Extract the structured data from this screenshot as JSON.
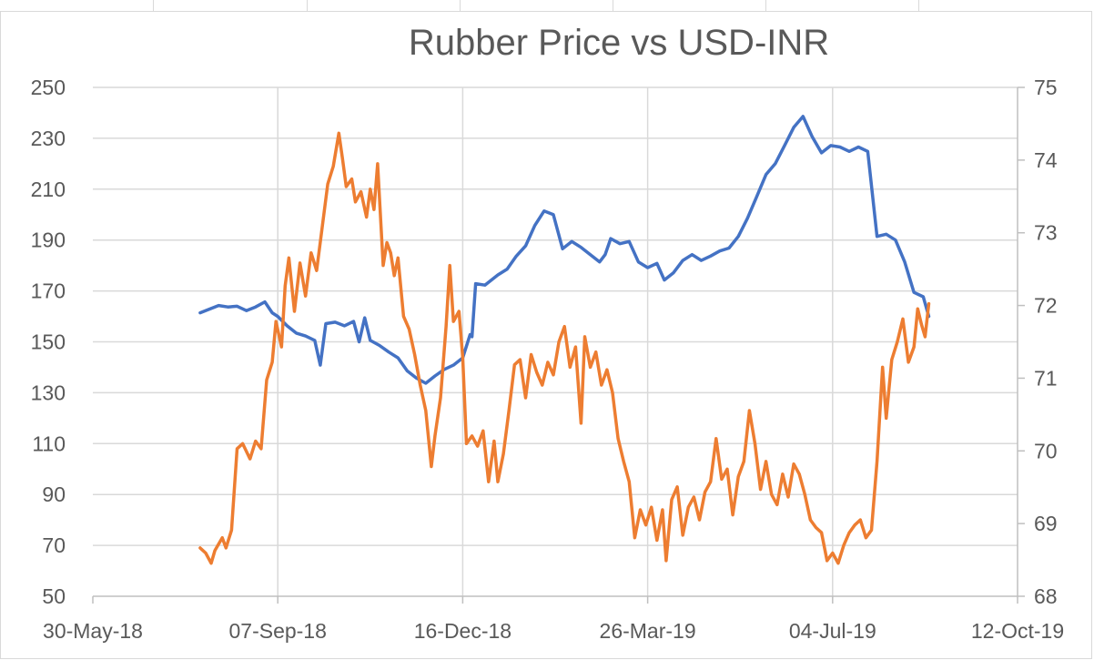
{
  "chart_data": {
    "type": "line",
    "title": "Rubber Price vs USD-INR",
    "xlabel": "",
    "ylabel": "",
    "x_ticks": [
      "30-May-18",
      "07-Sep-18",
      "16-Dec-18",
      "26-Mar-19",
      "04-Jul-19",
      "12-Oct-19"
    ],
    "x_range": [
      "2018-05-30",
      "2019-10-12"
    ],
    "y_left": {
      "range": [
        50,
        250
      ],
      "ticks": [
        "250",
        "230",
        "210",
        "190",
        "170",
        "150",
        "130",
        "110",
        "90",
        "70",
        "50"
      ]
    },
    "y_right": {
      "range": [
        68,
        75
      ],
      "ticks": [
        "75",
        "74",
        "73",
        "72",
        "71",
        "70",
        "69",
        "68"
      ]
    },
    "grid": true,
    "legend": "none",
    "series": [
      {
        "axis": "right",
        "color": "#4472c4",
        "points": [
          [
            "2018-07-27",
            71.9
          ],
          [
            "2018-08-01",
            71.95
          ],
          [
            "2018-08-06",
            72.0
          ],
          [
            "2018-08-11",
            71.98
          ],
          [
            "2018-08-16",
            71.99
          ],
          [
            "2018-08-21",
            71.93
          ],
          [
            "2018-08-26",
            71.98
          ],
          [
            "2018-08-31",
            72.05
          ],
          [
            "2018-09-04",
            71.9
          ],
          [
            "2018-09-07",
            71.85
          ],
          [
            "2018-09-12",
            71.72
          ],
          [
            "2018-09-17",
            71.62
          ],
          [
            "2018-09-22",
            71.58
          ],
          [
            "2018-09-27",
            71.52
          ],
          [
            "2018-09-30",
            71.18
          ],
          [
            "2018-10-03",
            71.75
          ],
          [
            "2018-10-08",
            71.77
          ],
          [
            "2018-10-13",
            71.72
          ],
          [
            "2018-10-18",
            71.78
          ],
          [
            "2018-10-21",
            71.5
          ],
          [
            "2018-10-24",
            71.83
          ],
          [
            "2018-10-27",
            71.52
          ],
          [
            "2018-11-01",
            71.45
          ],
          [
            "2018-11-06",
            71.36
          ],
          [
            "2018-11-11",
            71.28
          ],
          [
            "2018-11-16",
            71.1
          ],
          [
            "2018-11-21",
            71.0
          ],
          [
            "2018-11-26",
            70.93
          ],
          [
            "2018-12-01",
            71.03
          ],
          [
            "2018-12-06",
            71.12
          ],
          [
            "2018-12-11",
            71.18
          ],
          [
            "2018-12-16",
            71.28
          ],
          [
            "2018-12-19",
            71.52
          ],
          [
            "2018-12-20",
            71.6
          ],
          [
            "2018-12-21",
            71.57
          ],
          [
            "2018-12-23",
            72.3
          ],
          [
            "2018-12-28",
            72.28
          ],
          [
            "2019-01-04",
            72.42
          ],
          [
            "2019-01-09",
            72.5
          ],
          [
            "2019-01-14",
            72.68
          ],
          [
            "2019-01-19",
            72.82
          ],
          [
            "2019-01-24",
            73.1
          ],
          [
            "2019-01-29",
            73.3
          ],
          [
            "2019-02-03",
            73.25
          ],
          [
            "2019-02-08",
            72.78
          ],
          [
            "2019-02-13",
            72.88
          ],
          [
            "2019-02-18",
            72.8
          ],
          [
            "2019-02-23",
            72.7
          ],
          [
            "2019-02-28",
            72.6
          ],
          [
            "2019-03-03",
            72.7
          ],
          [
            "2019-03-06",
            72.92
          ],
          [
            "2019-03-11",
            72.85
          ],
          [
            "2019-03-16",
            72.88
          ],
          [
            "2019-03-21",
            72.6
          ],
          [
            "2019-03-26",
            72.52
          ],
          [
            "2019-03-31",
            72.58
          ],
          [
            "2019-04-04",
            72.35
          ],
          [
            "2019-04-09",
            72.45
          ],
          [
            "2019-04-14",
            72.62
          ],
          [
            "2019-04-19",
            72.7
          ],
          [
            "2019-04-24",
            72.62
          ],
          [
            "2019-04-29",
            72.68
          ],
          [
            "2019-05-04",
            72.75
          ],
          [
            "2019-05-09",
            72.79
          ],
          [
            "2019-05-14",
            72.95
          ],
          [
            "2019-05-19",
            73.2
          ],
          [
            "2019-05-24",
            73.5
          ],
          [
            "2019-05-29",
            73.8
          ],
          [
            "2019-06-03",
            73.95
          ],
          [
            "2019-06-08",
            74.2
          ],
          [
            "2019-06-13",
            74.45
          ],
          [
            "2019-06-18",
            74.6
          ],
          [
            "2019-06-23",
            74.32
          ],
          [
            "2019-06-28",
            74.1
          ],
          [
            "2019-07-03",
            74.2
          ],
          [
            "2019-07-08",
            74.18
          ],
          [
            "2019-07-13",
            74.12
          ],
          [
            "2019-07-18",
            74.18
          ],
          [
            "2019-07-23",
            74.12
          ],
          [
            "2019-07-28",
            72.95
          ],
          [
            "2019-08-02",
            72.98
          ],
          [
            "2019-08-07",
            72.9
          ],
          [
            "2019-08-12",
            72.6
          ],
          [
            "2019-08-17",
            72.18
          ],
          [
            "2019-08-22",
            72.12
          ],
          [
            "2019-08-25",
            71.85
          ]
        ]
      },
      {
        "axis": "left",
        "color": "#ed7d31",
        "points": [
          [
            "2018-07-27",
            69
          ],
          [
            "2018-07-30",
            67
          ],
          [
            "2018-08-02",
            63
          ],
          [
            "2018-08-04",
            68
          ],
          [
            "2018-08-08",
            73
          ],
          [
            "2018-08-10",
            69
          ],
          [
            "2018-08-13",
            76
          ],
          [
            "2018-08-16",
            108
          ],
          [
            "2018-08-19",
            110
          ],
          [
            "2018-08-23",
            104
          ],
          [
            "2018-08-26",
            111
          ],
          [
            "2018-08-29",
            108
          ],
          [
            "2018-09-01",
            135
          ],
          [
            "2018-09-04",
            142
          ],
          [
            "2018-09-06",
            158
          ],
          [
            "2018-09-09",
            148
          ],
          [
            "2018-09-11",
            172
          ],
          [
            "2018-09-13",
            183
          ],
          [
            "2018-09-16",
            162
          ],
          [
            "2018-09-19",
            181
          ],
          [
            "2018-09-22",
            168
          ],
          [
            "2018-09-25",
            185
          ],
          [
            "2018-09-28",
            178
          ],
          [
            "2018-10-01",
            195
          ],
          [
            "2018-10-04",
            212
          ],
          [
            "2018-10-07",
            219
          ],
          [
            "2018-10-10",
            232
          ],
          [
            "2018-10-12",
            222
          ],
          [
            "2018-10-14",
            211
          ],
          [
            "2018-10-17",
            214
          ],
          [
            "2018-10-19",
            205
          ],
          [
            "2018-10-22",
            209
          ],
          [
            "2018-10-25",
            199
          ],
          [
            "2018-10-27",
            210
          ],
          [
            "2018-10-29",
            202
          ],
          [
            "2018-10-31",
            220
          ],
          [
            "2018-11-03",
            180
          ],
          [
            "2018-11-05",
            189
          ],
          [
            "2018-11-07",
            185
          ],
          [
            "2018-11-09",
            176
          ],
          [
            "2018-11-11",
            183
          ],
          [
            "2018-11-14",
            160
          ],
          [
            "2018-11-17",
            155
          ],
          [
            "2018-11-20",
            145
          ],
          [
            "2018-11-23",
            133
          ],
          [
            "2018-11-26",
            123
          ],
          [
            "2018-11-29",
            101
          ],
          [
            "2018-12-01",
            113
          ],
          [
            "2018-12-04",
            128
          ],
          [
            "2018-12-07",
            156
          ],
          [
            "2018-12-09",
            180
          ],
          [
            "2018-12-11",
            158
          ],
          [
            "2018-12-14",
            162
          ],
          [
            "2018-12-16",
            144
          ],
          [
            "2018-12-18",
            110
          ],
          [
            "2018-12-21",
            113
          ],
          [
            "2018-12-24",
            109
          ],
          [
            "2018-12-27",
            115
          ],
          [
            "2018-12-30",
            95
          ],
          [
            "2019-01-02",
            111
          ],
          [
            "2019-01-04",
            95
          ],
          [
            "2019-01-07",
            106
          ],
          [
            "2019-01-10",
            123
          ],
          [
            "2019-01-13",
            141
          ],
          [
            "2019-01-16",
            143
          ],
          [
            "2019-01-19",
            128
          ],
          [
            "2019-01-22",
            145
          ],
          [
            "2019-01-25",
            138
          ],
          [
            "2019-01-28",
            133
          ],
          [
            "2019-01-31",
            142
          ],
          [
            "2019-02-03",
            137
          ],
          [
            "2019-02-06",
            150
          ],
          [
            "2019-02-09",
            156
          ],
          [
            "2019-02-12",
            140
          ],
          [
            "2019-02-15",
            148
          ],
          [
            "2019-02-18",
            118
          ],
          [
            "2019-02-20",
            152
          ],
          [
            "2019-02-23",
            140
          ],
          [
            "2019-02-26",
            146
          ],
          [
            "2019-03-01",
            133
          ],
          [
            "2019-03-04",
            139
          ],
          [
            "2019-03-07",
            130
          ],
          [
            "2019-03-10",
            112
          ],
          [
            "2019-03-13",
            103
          ],
          [
            "2019-03-16",
            95
          ],
          [
            "2019-03-19",
            73
          ],
          [
            "2019-03-22",
            84
          ],
          [
            "2019-03-25",
            78
          ],
          [
            "2019-03-28",
            85
          ],
          [
            "2019-03-31",
            72
          ],
          [
            "2019-04-03",
            84
          ],
          [
            "2019-04-05",
            64
          ],
          [
            "2019-04-08",
            88
          ],
          [
            "2019-04-11",
            93
          ],
          [
            "2019-04-14",
            74
          ],
          [
            "2019-04-17",
            85
          ],
          [
            "2019-04-20",
            89
          ],
          [
            "2019-04-23",
            80
          ],
          [
            "2019-04-26",
            91
          ],
          [
            "2019-04-29",
            95
          ],
          [
            "2019-05-02",
            112
          ],
          [
            "2019-05-05",
            96
          ],
          [
            "2019-05-08",
            100
          ],
          [
            "2019-05-11",
            82
          ],
          [
            "2019-05-14",
            97
          ],
          [
            "2019-05-17",
            103
          ],
          [
            "2019-05-20",
            123
          ],
          [
            "2019-05-23",
            110
          ],
          [
            "2019-05-26",
            92
          ],
          [
            "2019-05-29",
            103
          ],
          [
            "2019-06-01",
            90
          ],
          [
            "2019-06-04",
            86
          ],
          [
            "2019-06-07",
            98
          ],
          [
            "2019-06-10",
            89
          ],
          [
            "2019-06-13",
            102
          ],
          [
            "2019-06-16",
            98
          ],
          [
            "2019-06-19",
            90
          ],
          [
            "2019-06-22",
            80
          ],
          [
            "2019-06-25",
            77
          ],
          [
            "2019-06-28",
            75
          ],
          [
            "2019-07-01",
            64
          ],
          [
            "2019-07-04",
            67
          ],
          [
            "2019-07-07",
            63
          ],
          [
            "2019-07-10",
            70
          ],
          [
            "2019-07-13",
            75
          ],
          [
            "2019-07-16",
            78
          ],
          [
            "2019-07-19",
            80
          ],
          [
            "2019-07-22",
            73
          ],
          [
            "2019-07-25",
            76
          ],
          [
            "2019-07-28",
            103
          ],
          [
            "2019-07-31",
            140
          ],
          [
            "2019-08-02",
            120
          ],
          [
            "2019-08-05",
            143
          ],
          [
            "2019-08-08",
            150
          ],
          [
            "2019-08-11",
            159
          ],
          [
            "2019-08-14",
            142
          ],
          [
            "2019-08-17",
            148
          ],
          [
            "2019-08-19",
            163
          ],
          [
            "2019-08-21",
            157
          ],
          [
            "2019-08-23",
            152
          ],
          [
            "2019-08-25",
            165
          ]
        ]
      }
    ]
  }
}
